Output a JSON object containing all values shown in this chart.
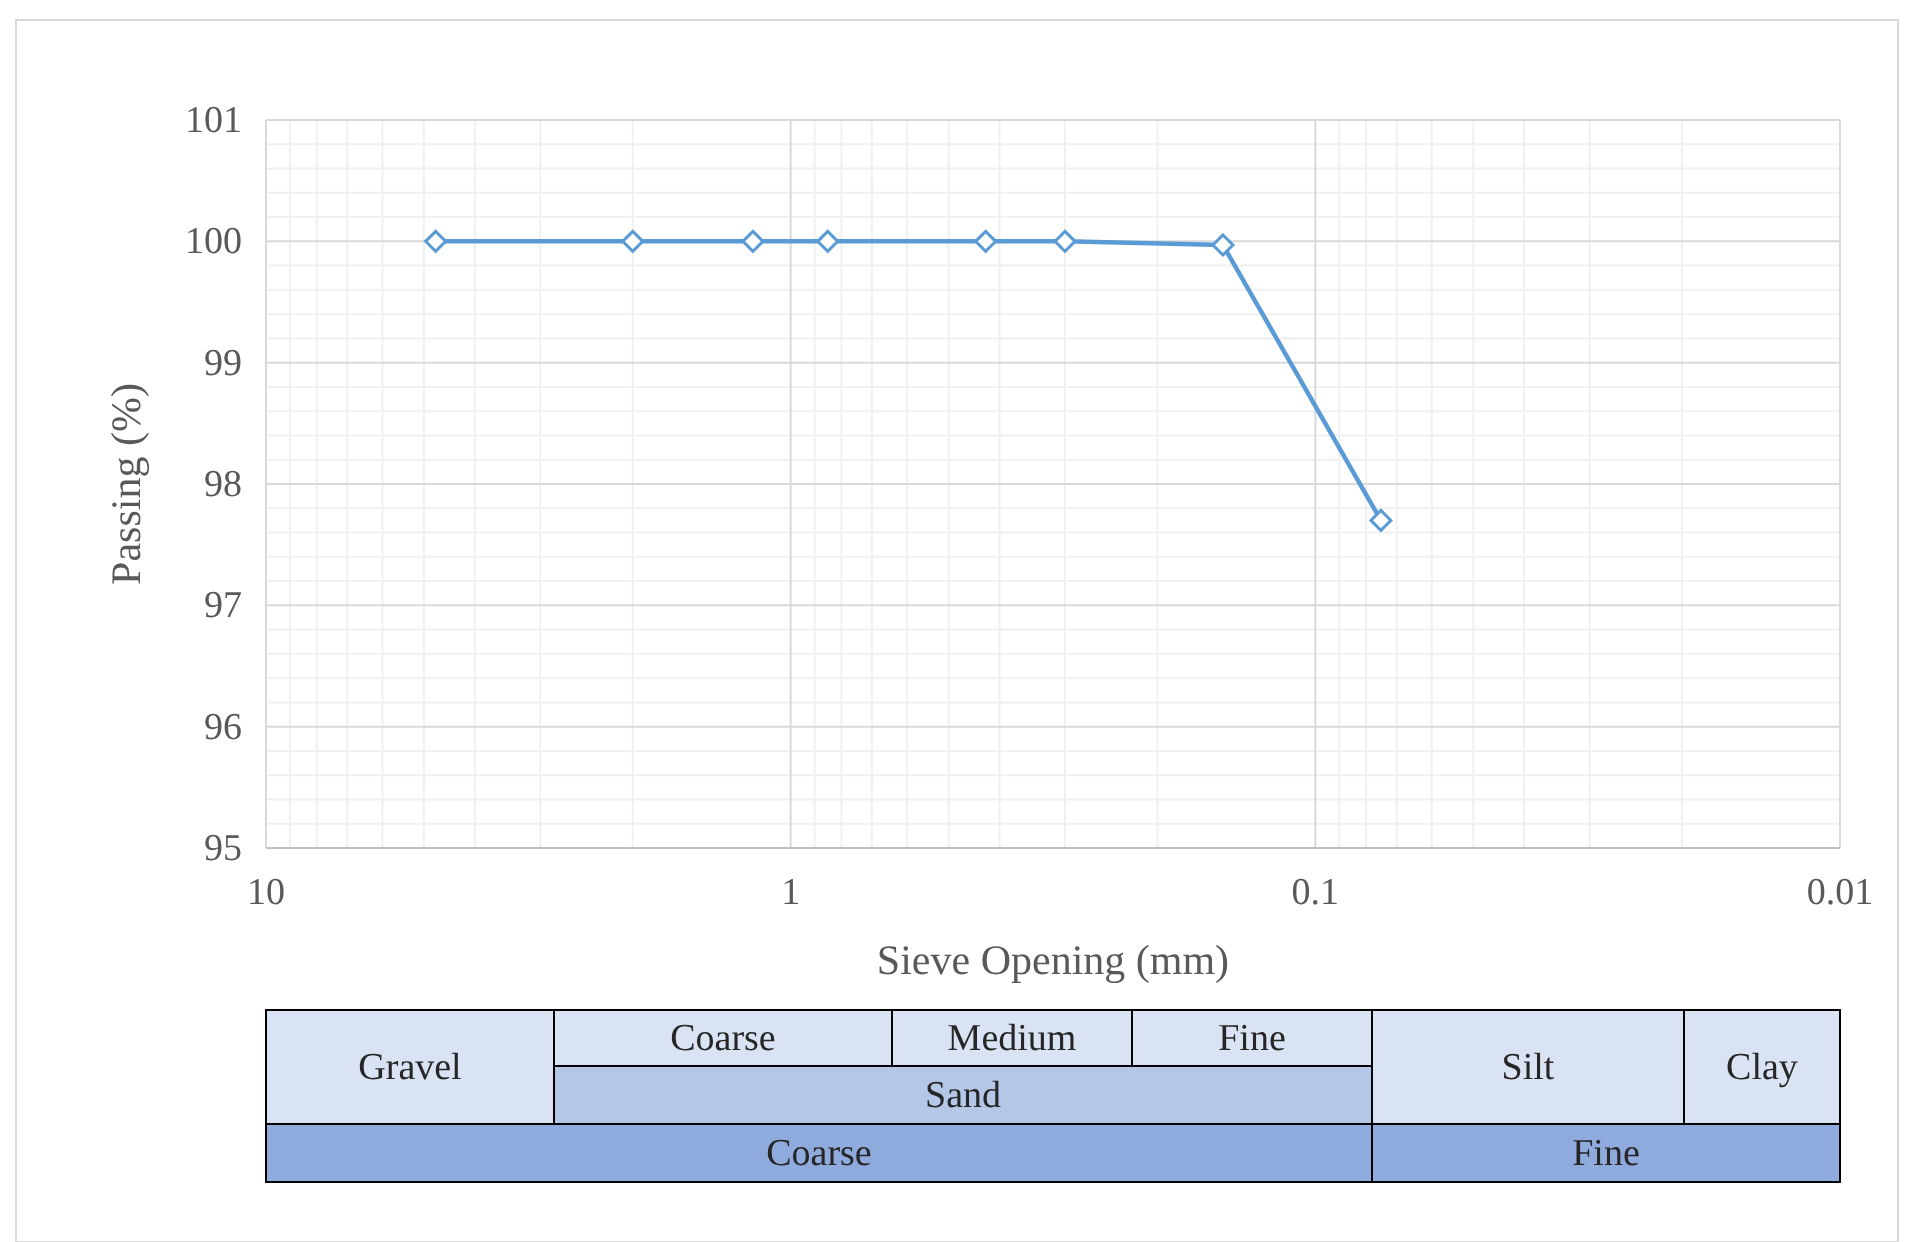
{
  "chart_data": {
    "type": "line",
    "xlabel": "Sieve Opening (mm)",
    "ylabel": "Passing (%)",
    "x": [
      4.75,
      2,
      1.18,
      0.85,
      0.425,
      0.3,
      0.15,
      0.075
    ],
    "series": [
      {
        "color": "#5b9bd5",
        "values": [
          100,
          100,
          100,
          100,
          100,
          100,
          99.97,
          97.7
        ]
      }
    ],
    "log": "x",
    "xlim": [
      10,
      0.01
    ],
    "xticks": [
      10,
      1,
      0.1,
      0.01
    ],
    "ylim": [
      95,
      101
    ],
    "yticks": [
      95,
      96,
      97,
      98,
      99,
      100,
      101
    ],
    "grid": true,
    "marker": "diamond",
    "line_style": "solid",
    "annotations": [
      "Gravel",
      "Coarse",
      "Medium",
      "Fine",
      "Sand",
      "Silt",
      "Clay",
      "Coarse",
      "Fine"
    ]
  }
}
